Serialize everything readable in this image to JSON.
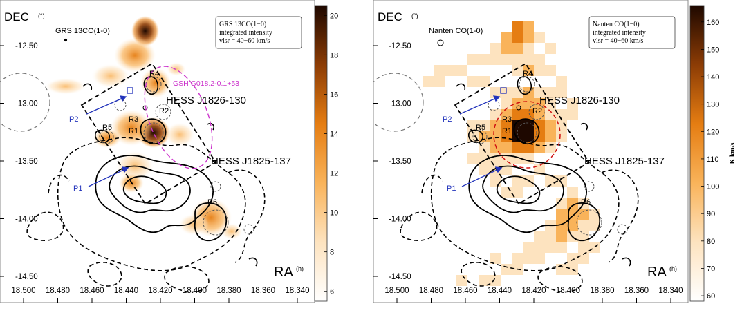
{
  "chart_data": [
    {
      "type": "heatmap",
      "ylabel": "DEC",
      "ylabel_unit": "(°)",
      "xlabel": "RA",
      "xlabel_unit": "(h)",
      "map_label": "GRS 13CO(1-0)",
      "box_lines": [
        "GRS 13CO(1−0)",
        "integrated intensity",
        "vlsr = 40−60 km/s"
      ],
      "x_ticks": [
        "18.500",
        "18.480",
        "18.460",
        "18.440",
        "18.420",
        "18.400",
        "18.380",
        "18.360",
        "18.340"
      ],
      "y_ticks": [
        "-12.50",
        "-13.00",
        "-13.50",
        "-14.00",
        "-14.50"
      ],
      "colorbar_ticks": [
        "20",
        "18",
        "16",
        "14",
        "12",
        "10",
        "8",
        "6"
      ],
      "colorbar_range": [
        5.5,
        20.5
      ],
      "sources": [
        "HESS J1826-130",
        "HESS J1825-137"
      ],
      "shell_label": "GSH G018.2-0.1+53",
      "regions": [
        "R1",
        "R2",
        "R3",
        "R4",
        "R5",
        "R6"
      ],
      "paths": [
        "P1",
        "P2"
      ]
    },
    {
      "type": "heatmap",
      "ylabel": "DEC",
      "ylabel_unit": "(°)",
      "xlabel": "RA",
      "xlabel_unit": "(h)",
      "map_label": "Nanten CO(1-0)",
      "box_lines": [
        "Nanten CO(1−0)",
        "integrated intensity",
        "vlsr = 40−60 km/s"
      ],
      "x_ticks": [
        "18.500",
        "18.480",
        "18.460",
        "18.440",
        "18.420",
        "18.400",
        "18.380",
        "18.360",
        "18.340"
      ],
      "y_ticks": [
        "-12.50",
        "-13.00",
        "-13.50",
        "-14.00",
        "-14.50"
      ],
      "colorbar_ticks": [
        "160",
        "150",
        "140",
        "130",
        "120",
        "110",
        "100",
        "90",
        "80",
        "70",
        "60"
      ],
      "colorbar_unit": "K km/s",
      "colorbar_range": [
        58,
        166
      ],
      "sources": [
        "HESS J1826-130",
        "HESS J1825-137"
      ],
      "regions": [
        "R1",
        "R2",
        "R3",
        "R4",
        "R5",
        "R6"
      ],
      "paths": [
        "P1",
        "P2"
      ]
    }
  ],
  "colors": {
    "colormap_low": "#ffffff",
    "colormap_mid": "#f7a13a",
    "colormap_high": "#2a0a00",
    "contour": "#000000",
    "path_arrow": "#2233bb",
    "shell": "#cc33cc",
    "red_circle": "#d01010"
  }
}
